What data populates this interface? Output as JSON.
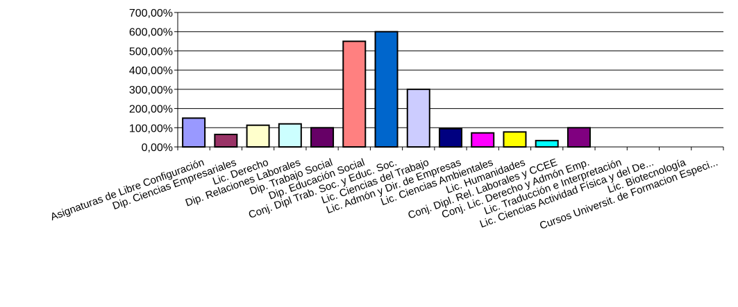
{
  "chart_data": {
    "type": "bar",
    "categories": [
      "Asignaturas de Libre Configuración",
      "Dip. Ciencias Empresariales",
      "Lic. Derecho",
      "Dip. Relaciones Laborales",
      "Dip. Trabajo Social",
      "Dip. Educación Social",
      "Conj. Dipl Trab. Soc. y Educ. Soc.",
      "Lic. Ciencias del Trabajo",
      "Lic. Admón y Dir. de Empresas",
      "Lic. Ciencias Ambientales",
      "Lic. Humanidades",
      "Conj. Dipl. Rel. Laborales y CCEE",
      "Conj. Lic. Derecho y Admón Emp.",
      "Lic. Traducción e Interpretación",
      "Lic. Ciencias Actividad Física y del De...",
      "Lic. Biotecnología",
      "Cursos Universit. de Formacion Especi..."
    ],
    "values": [
      150,
      65,
      113,
      120,
      100,
      550,
      600,
      300,
      95,
      73,
      78,
      33,
      100,
      null,
      null,
      null,
      null
    ],
    "bar_colors": [
      "#9999ff",
      "#993366",
      "#ffffcc",
      "#ccffff",
      "#660066",
      "#ff8080",
      "#0066cc",
      "#ccccff",
      "#000080",
      "#ff00ff",
      "#ffff00",
      "#00ffff",
      "#800080",
      "#800000",
      "#008080",
      "#0000ff",
      "#c0c0c0"
    ],
    "ylim": [
      0,
      700
    ],
    "yticks": [
      "0,00%",
      "100,00%",
      "200,00%",
      "300,00%",
      "400,00%",
      "500,00%",
      "600,00%",
      "700,00%"
    ],
    "grid": true,
    "legend": "none",
    "title": "",
    "xlabel": "",
    "ylabel": ""
  }
}
